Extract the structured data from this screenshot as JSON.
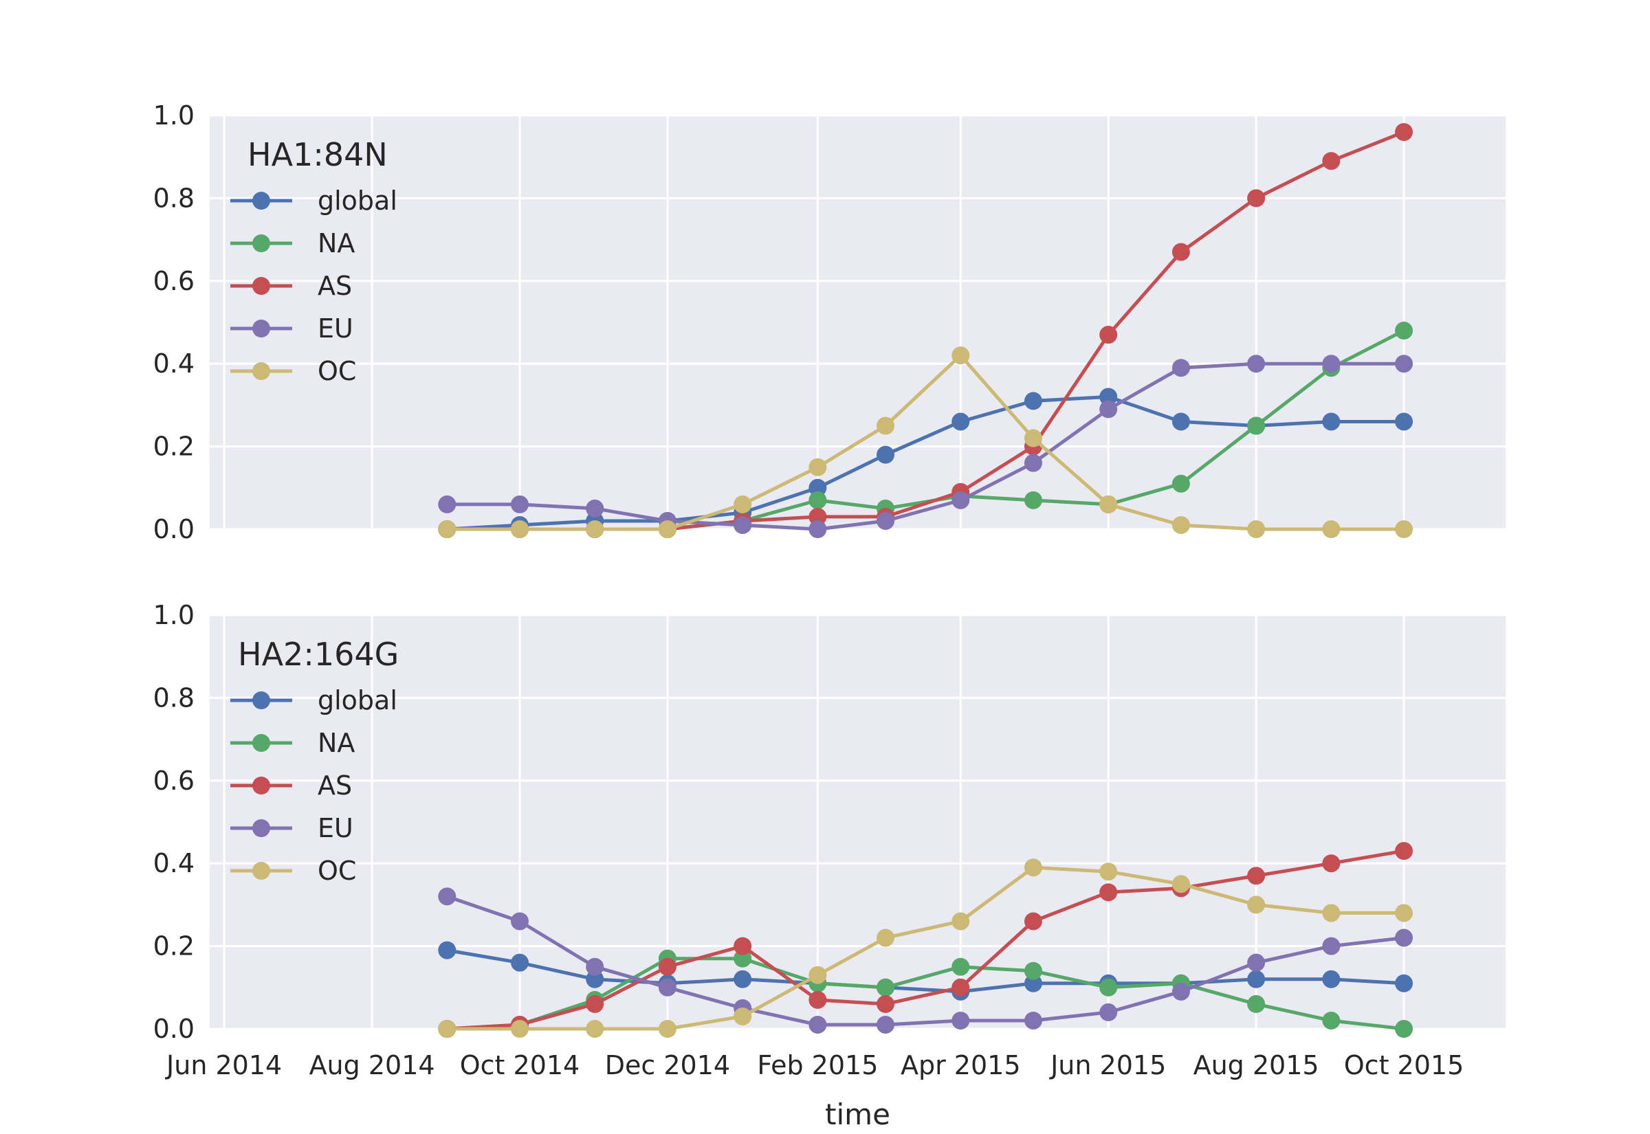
{
  "chart_data": [
    {
      "type": "line",
      "legend_title": "HA1:84N",
      "legend_position": "top-left",
      "grid": true,
      "ylim": [
        0,
        1.0
      ],
      "xlim": [
        "2014-05-26",
        "2015-11-12"
      ],
      "x_ticks": [
        {
          "date": "2014-06-01",
          "label": ""
        },
        {
          "date": "2014-08-01",
          "label": ""
        },
        {
          "date": "2014-10-01",
          "label": ""
        },
        {
          "date": "2014-12-01",
          "label": ""
        },
        {
          "date": "2015-02-01",
          "label": ""
        },
        {
          "date": "2015-04-01",
          "label": ""
        },
        {
          "date": "2015-06-01",
          "label": ""
        },
        {
          "date": "2015-08-01",
          "label": ""
        },
        {
          "date": "2015-10-01",
          "label": ""
        }
      ],
      "y_ticks": [
        "0.0",
        "0.2",
        "0.4",
        "0.6",
        "0.8",
        "1.0"
      ],
      "x": [
        "2014-09-01",
        "2014-10-01",
        "2014-11-01",
        "2014-12-01",
        "2015-01-01",
        "2015-02-01",
        "2015-03-01",
        "2015-04-01",
        "2015-05-01",
        "2015-06-01",
        "2015-07-01",
        "2015-08-01",
        "2015-09-01",
        "2015-10-01"
      ],
      "series": [
        {
          "name": "global",
          "color": "#4c72b0",
          "values": [
            0.0,
            0.01,
            0.02,
            0.02,
            0.04,
            0.1,
            0.18,
            0.26,
            0.31,
            0.32,
            0.26,
            0.25,
            0.26,
            0.26
          ]
        },
        {
          "name": "NA",
          "color": "#55a868",
          "values": [
            0.0,
            0.0,
            0.0,
            0.0,
            0.02,
            0.07,
            0.05,
            0.08,
            0.07,
            0.06,
            0.11,
            0.25,
            0.39,
            0.48
          ]
        },
        {
          "name": "AS",
          "color": "#c44e52",
          "values": [
            0.0,
            0.0,
            0.0,
            0.0,
            0.02,
            0.03,
            0.03,
            0.09,
            0.2,
            0.47,
            0.67,
            0.8,
            0.89,
            0.96
          ]
        },
        {
          "name": "EU",
          "color": "#8172b2",
          "values": [
            0.06,
            0.06,
            0.05,
            0.02,
            0.01,
            0.0,
            0.02,
            0.07,
            0.16,
            0.29,
            0.39,
            0.4,
            0.4,
            0.4
          ]
        },
        {
          "name": "OC",
          "color": "#ccb974",
          "values": [
            0.0,
            0.0,
            0.0,
            0.0,
            0.06,
            0.15,
            0.25,
            0.42,
            0.22,
            0.06,
            0.01,
            0.0,
            0.0,
            0.0
          ]
        }
      ]
    },
    {
      "type": "line",
      "legend_title": "HA2:164G",
      "legend_position": "top-left",
      "grid": true,
      "ylim": [
        0,
        1.0
      ],
      "xlim": [
        "2014-05-26",
        "2015-11-12"
      ],
      "xlabel": "time",
      "x_ticks": [
        {
          "date": "2014-06-01",
          "label": "Jun 2014"
        },
        {
          "date": "2014-08-01",
          "label": "Aug 2014"
        },
        {
          "date": "2014-10-01",
          "label": "Oct 2014"
        },
        {
          "date": "2014-12-01",
          "label": "Dec 2014"
        },
        {
          "date": "2015-02-01",
          "label": "Feb 2015"
        },
        {
          "date": "2015-04-01",
          "label": "Apr 2015"
        },
        {
          "date": "2015-06-01",
          "label": "Jun 2015"
        },
        {
          "date": "2015-08-01",
          "label": "Aug 2015"
        },
        {
          "date": "2015-10-01",
          "label": "Oct 2015"
        }
      ],
      "y_ticks": [
        "0.0",
        "0.2",
        "0.4",
        "0.6",
        "0.8",
        "1.0"
      ],
      "x": [
        "2014-09-01",
        "2014-10-01",
        "2014-11-01",
        "2014-12-01",
        "2015-01-01",
        "2015-02-01",
        "2015-03-01",
        "2015-04-01",
        "2015-05-01",
        "2015-06-01",
        "2015-07-01",
        "2015-08-01",
        "2015-09-01",
        "2015-10-01"
      ],
      "series": [
        {
          "name": "global",
          "color": "#4c72b0",
          "values": [
            0.19,
            0.16,
            0.12,
            0.11,
            0.12,
            0.11,
            0.1,
            0.09,
            0.11,
            0.11,
            0.11,
            0.12,
            0.12,
            0.11
          ]
        },
        {
          "name": "NA",
          "color": "#55a868",
          "values": [
            0.0,
            0.01,
            0.07,
            0.17,
            0.17,
            0.11,
            0.1,
            0.15,
            0.14,
            0.1,
            0.11,
            0.06,
            0.02,
            0.0
          ]
        },
        {
          "name": "AS",
          "color": "#c44e52",
          "values": [
            0.0,
            0.01,
            0.06,
            0.15,
            0.2,
            0.07,
            0.06,
            0.1,
            0.26,
            0.33,
            0.34,
            0.37,
            0.4,
            0.43
          ]
        },
        {
          "name": "EU",
          "color": "#8172b2",
          "values": [
            0.32,
            0.26,
            0.15,
            0.1,
            0.05,
            0.01,
            0.01,
            0.02,
            0.02,
            0.04,
            0.09,
            0.16,
            0.2,
            0.22
          ]
        },
        {
          "name": "OC",
          "color": "#ccb974",
          "values": [
            0.0,
            0.0,
            0.0,
            0.0,
            0.03,
            0.13,
            0.22,
            0.26,
            0.39,
            0.38,
            0.35,
            0.3,
            0.28,
            0.28
          ]
        }
      ]
    }
  ]
}
